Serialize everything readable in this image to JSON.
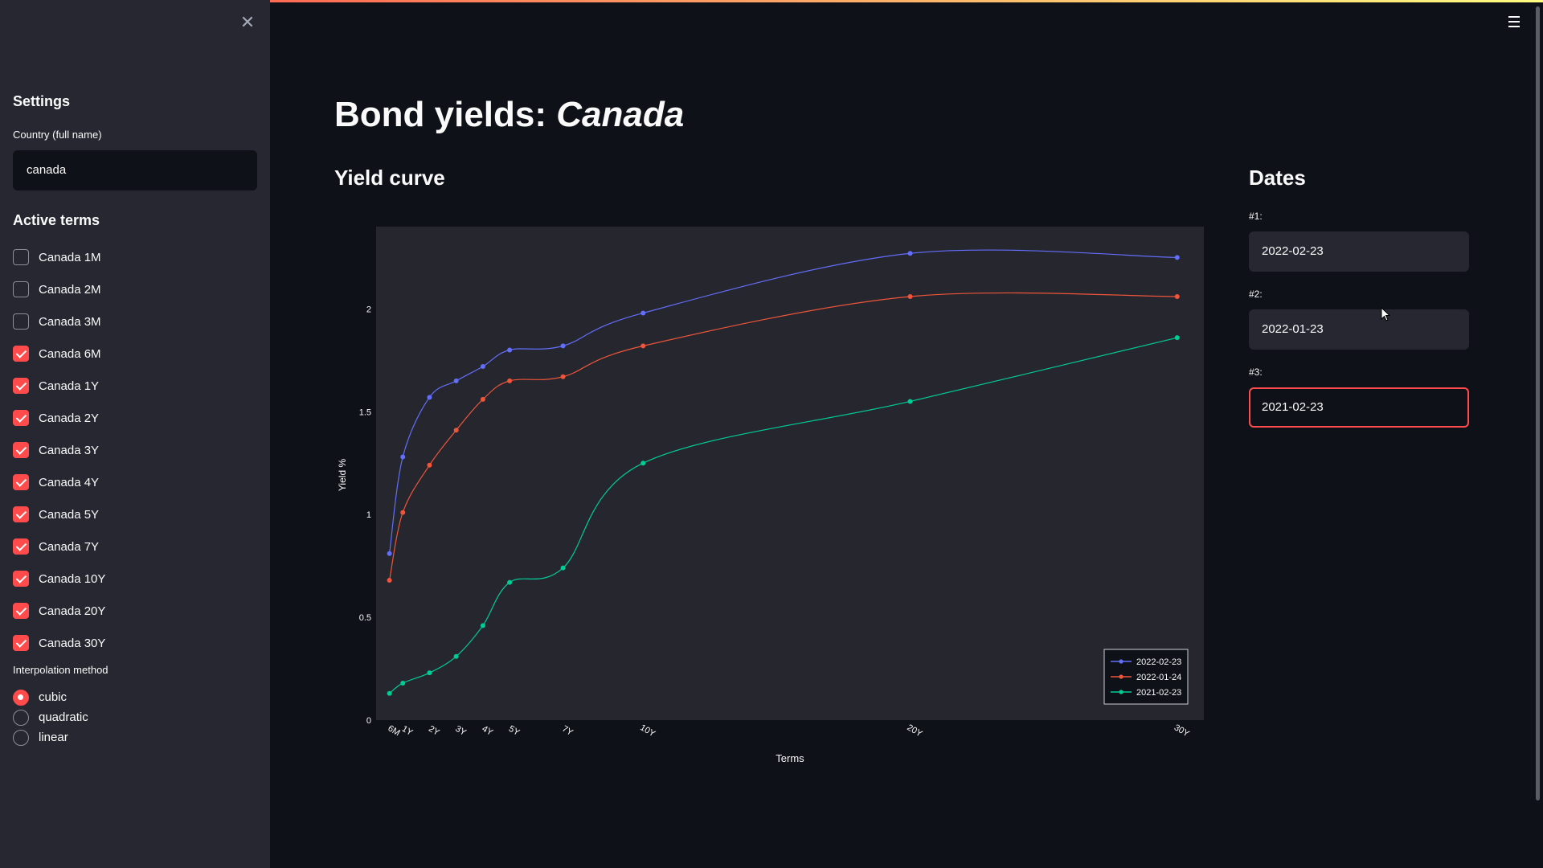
{
  "sidebar": {
    "settings_title": "Settings",
    "country_label": "Country (full name)",
    "country_value": "canada",
    "active_terms_title": "Active terms",
    "terms": [
      {
        "label": "Canada 1M",
        "checked": false
      },
      {
        "label": "Canada 2M",
        "checked": false
      },
      {
        "label": "Canada 3M",
        "checked": false
      },
      {
        "label": "Canada 6M",
        "checked": true
      },
      {
        "label": "Canada 1Y",
        "checked": true
      },
      {
        "label": "Canada 2Y",
        "checked": true
      },
      {
        "label": "Canada 3Y",
        "checked": true
      },
      {
        "label": "Canada 4Y",
        "checked": true
      },
      {
        "label": "Canada 5Y",
        "checked": true
      },
      {
        "label": "Canada 7Y",
        "checked": true
      },
      {
        "label": "Canada 10Y",
        "checked": true
      },
      {
        "label": "Canada 20Y",
        "checked": true
      },
      {
        "label": "Canada 30Y",
        "checked": true
      }
    ],
    "interp_label": "Interpolation method",
    "interp_options": [
      {
        "label": "cubic",
        "selected": true
      },
      {
        "label": "quadratic",
        "selected": false
      },
      {
        "label": "linear",
        "selected": false
      }
    ]
  },
  "main": {
    "title_prefix": "Bond yields: ",
    "title_country": "Canada",
    "yield_curve_title": "Yield curve",
    "dates_title": "Dates",
    "dates": [
      {
        "label": "#1:",
        "value": "2022-02-23"
      },
      {
        "label": "#2:",
        "value": "2022-01-23"
      },
      {
        "label": "#3:",
        "value": "2021-02-23"
      }
    ]
  },
  "colors": {
    "accent": "#ff4b4b",
    "sidebar_bg": "#262730",
    "app_bg": "#0e1117",
    "plot_bg": "#25262e"
  },
  "chart_data": {
    "type": "line",
    "xlabel": "Terms",
    "ylabel": "Yield %",
    "x": [
      0.5,
      1,
      2,
      3,
      4,
      5,
      7,
      10,
      20,
      30
    ],
    "x_tick_labels": [
      "6M",
      "1Y",
      "2Y",
      "3Y",
      "4Y",
      "5Y",
      "7Y",
      "10Y",
      "20Y",
      "30Y"
    ],
    "y_ticks": [
      0,
      0.5,
      1,
      1.5,
      2
    ],
    "y_tick_labels": [
      "0",
      "0.5",
      "1",
      "1.5",
      "2"
    ],
    "ylim": [
      0,
      2.4
    ],
    "xlim": [
      0,
      31
    ],
    "legend_position": "bottom-right",
    "series": [
      {
        "name": "2022-02-23",
        "color": "#636efa",
        "values": [
          0.81,
          1.28,
          1.57,
          1.65,
          1.72,
          1.8,
          1.82,
          1.98,
          2.27,
          2.25
        ]
      },
      {
        "name": "2022-01-24",
        "color": "#ef553b",
        "values": [
          0.68,
          1.01,
          1.24,
          1.41,
          1.56,
          1.65,
          1.67,
          1.82,
          2.06,
          2.06
        ]
      },
      {
        "name": "2021-02-23",
        "color": "#00cc96",
        "values": [
          0.13,
          0.18,
          0.23,
          0.31,
          0.46,
          0.67,
          0.74,
          1.25,
          1.55,
          1.86
        ]
      }
    ]
  }
}
